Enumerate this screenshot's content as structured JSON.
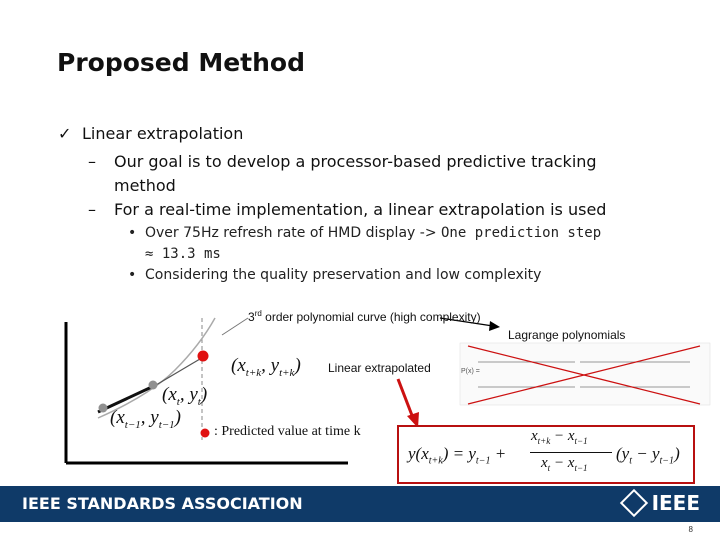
{
  "slide": {
    "title": "Proposed Method",
    "bullet1": "Linear extrapolation",
    "bullet1_icon": "check-icon",
    "sub1": "Our goal is to develop a processor-based predictive tracking",
    "sub1_cont": "method",
    "sub2": "For a real-time implementation, a linear extrapolation is used",
    "sub2a_part1": "Over 75Hz refresh rate of HMD display ->",
    "sub2a_part2": "One prediction step",
    "sub2a_cont": "≈ 13.3 ms",
    "sub2b": "Considering the quality preservation and low complexity"
  },
  "figure": {
    "label_curve_sup": "rd",
    "label_curve_num": "3",
    "label_curve": "order polynomial curve (high complexity)",
    "label_lagrange": "Lagrange polynomials",
    "label_linear": "Linear extrapolated",
    "label_predicted": ": Predicted value at time k",
    "lagrange_lhs": "P(x) =",
    "point_tk": "(x",
    "point_tk_sub1": "t+k",
    "point_tk_mid": ", y",
    "point_tk_sub2": "t+k",
    "point_tk_end": ")",
    "point_t": "(x",
    "point_t_sub1": "t",
    "point_t_mid": ", y",
    "point_t_sub2": "t",
    "point_t_end": ")",
    "point_t1": "(x",
    "point_t1_sub1": "t−1",
    "point_t1_mid": ", y",
    "point_t1_sub2": "t−1",
    "point_t1_end": ")",
    "formula": "y(x_{t+k}) = y_{t−1} + (x_{t+k} − x_{t−1})/(x_t − x_{t−1}) (y_t − y_{t−1})"
  },
  "footer": {
    "org": "IEEE STANDARDS ASSOCIATION",
    "logo": "IEEE",
    "page": "8"
  },
  "colors": {
    "footer_bg": "#0f3a68",
    "accent_red": "#cc1111",
    "point_red": "#e01010",
    "point_gray": "#909090"
  }
}
